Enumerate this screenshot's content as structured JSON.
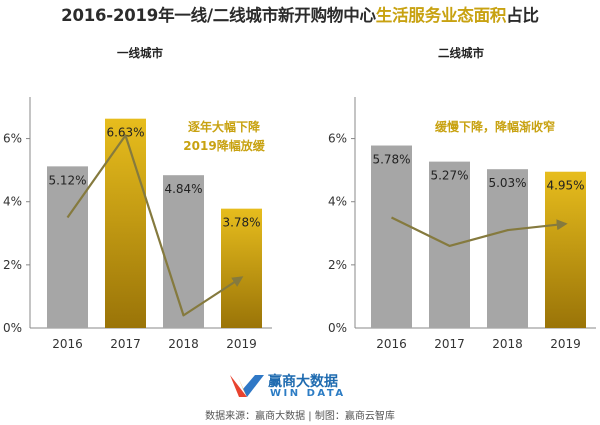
{
  "title": {
    "part1": "2016-2019年一线/二线城市新开购物中心",
    "part2": "生活服务业态面积",
    "part3": "占比"
  },
  "chart_data": [
    {
      "type": "bar",
      "title": "一线城市",
      "categories": [
        "2016",
        "2017",
        "2018",
        "2019"
      ],
      "values": [
        5.12,
        6.63,
        4.84,
        3.78
      ],
      "value_labels": [
        "5.12%",
        "6.63%",
        "4.84%",
        "3.78%"
      ],
      "bar_colors": [
        "#a6a6a6",
        "#c79c0c",
        "#a6a6a6",
        "#c79c0c"
      ],
      "trend": [
        3.5,
        6.1,
        0.4,
        1.6
      ],
      "ylim": [
        0,
        7
      ],
      "yticks": [
        "0%",
        "2%",
        "4%",
        "6%"
      ],
      "annotation": [
        "逐年大幅下降",
        "2019降幅放缓"
      ]
    },
    {
      "type": "bar",
      "title": "二线城市",
      "categories": [
        "2016",
        "2017",
        "2018",
        "2019"
      ],
      "values": [
        5.78,
        5.27,
        5.03,
        4.95
      ],
      "value_labels": [
        "5.78%",
        "5.27%",
        "5.03%",
        "4.95%"
      ],
      "bar_colors": [
        "#a6a6a6",
        "#a6a6a6",
        "#a6a6a6",
        "#c79c0c"
      ],
      "trend": [
        3.5,
        2.6,
        3.1,
        3.3
      ],
      "ylim": [
        0,
        7
      ],
      "yticks": [
        "0%",
        "2%",
        "4%",
        "6%"
      ],
      "annotation": [
        "缓慢下降，降幅渐收窄"
      ]
    }
  ],
  "colors": {
    "gold": "#c8a211",
    "grey": "#a6a6a6",
    "trend": "#857a3e"
  },
  "logo": {
    "cn": "赢商大数据",
    "en": "WIN DATA"
  },
  "source": "数据来源：赢商大数据 | 制图：赢商云智库"
}
